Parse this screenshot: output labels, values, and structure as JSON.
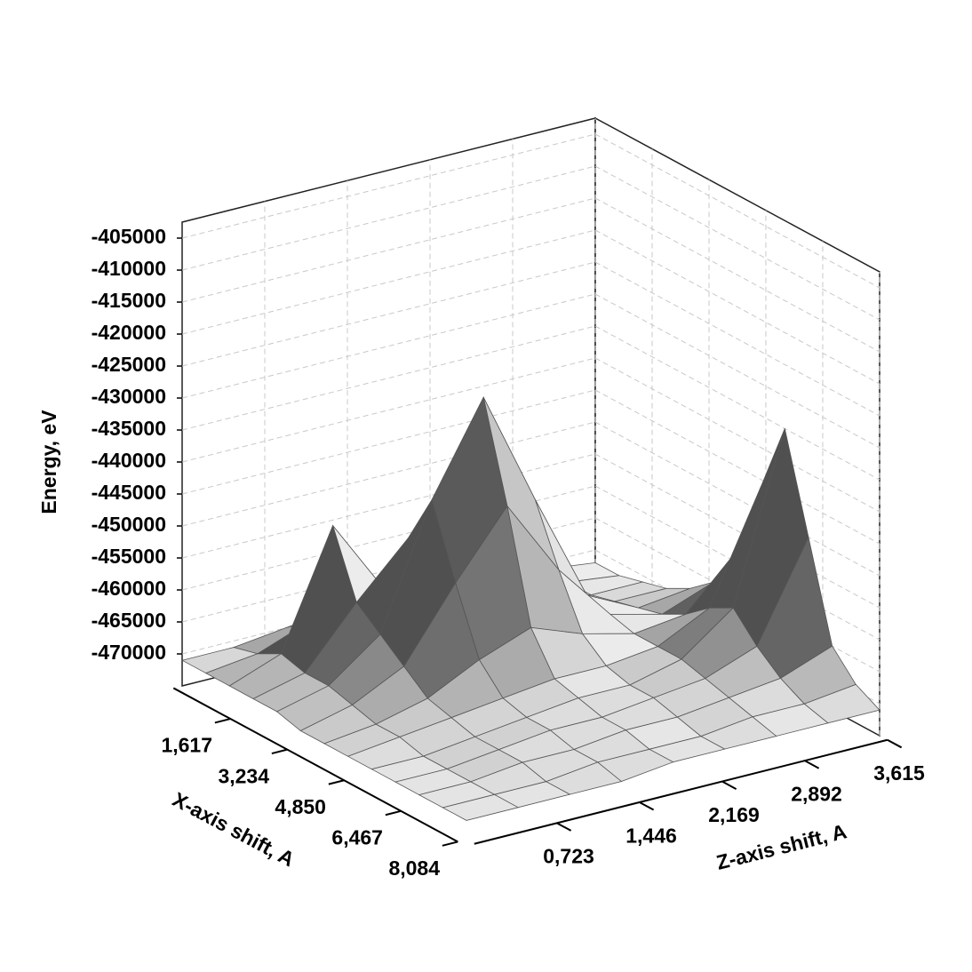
{
  "chart_data": {
    "type": "surface",
    "xlabel": "X-axis shift, A",
    "ylabel": "Z-axis shift, A",
    "zlabel": "Energy, eV",
    "x": [
      0,
      0.674,
      1.347,
      2.021,
      2.695,
      3.368,
      4.042,
      4.716,
      5.389,
      6.063,
      6.737,
      7.41,
      8.084
    ],
    "y": [
      0,
      0.452,
      0.904,
      1.356,
      1.808,
      2.259,
      2.711,
      3.163,
      3.615
    ],
    "values": [
      [
        -471000,
        -471000,
        -470000,
        -469000,
        -469000,
        -470000,
        -471000,
        -471000,
        -472000
      ],
      [
        -471000,
        -470000,
        -467000,
        -465000,
        -466000,
        -468000,
        -470000,
        -471000,
        -472000
      ],
      [
        -471000,
        -468000,
        -450000,
        -462000,
        -462000,
        -466000,
        -469000,
        -471000,
        -471000
      ],
      [
        -471000,
        -469000,
        -460000,
        -452000,
        -445000,
        -458000,
        -467000,
        -470000,
        -470000
      ],
      [
        -471000,
        -469000,
        -463000,
        -444000,
        -430000,
        -448000,
        -465000,
        -469000,
        -468000
      ],
      [
        -472000,
        -470000,
        -466000,
        -455000,
        -445000,
        -457000,
        -466000,
        -468000,
        -465000
      ],
      [
        -472000,
        -471000,
        -469000,
        -465000,
        -462000,
        -465000,
        -467000,
        -466000,
        -458000
      ],
      [
        -472000,
        -471000,
        -470000,
        -469000,
        -468000,
        -468000,
        -467000,
        -463000,
        -446000
      ],
      [
        -472000,
        -472000,
        -471000,
        -470000,
        -469000,
        -469000,
        -467000,
        -461000,
        -435000
      ],
      [
        -472000,
        -472000,
        -471000,
        -470000,
        -470000,
        -469000,
        -468000,
        -465000,
        -450000
      ],
      [
        -472000,
        -472000,
        -471000,
        -471000,
        -470000,
        -470000,
        -469000,
        -468000,
        -465000
      ],
      [
        -472000,
        -472000,
        -472000,
        -471000,
        -471000,
        -471000,
        -470000,
        -470000,
        -469000
      ],
      [
        -472000,
        -472000,
        -472000,
        -472000,
        -471000,
        -471000,
        -471000,
        -471000,
        -471000
      ]
    ],
    "xlim": [
      0,
      8.084
    ],
    "ylim": [
      0,
      3.615
    ],
    "zlim": [
      -475000,
      -402500
    ],
    "xticks": [
      {
        "value": 1.617,
        "label": "1,617"
      },
      {
        "value": 3.234,
        "label": "3,234"
      },
      {
        "value": 4.85,
        "label": "4,850"
      },
      {
        "value": 6.467,
        "label": "6,467"
      },
      {
        "value": 8.084,
        "label": "8,084"
      }
    ],
    "yticks": [
      {
        "value": 0.723,
        "label": "0,723"
      },
      {
        "value": 1.446,
        "label": "1,446"
      },
      {
        "value": 2.169,
        "label": "2,169"
      },
      {
        "value": 2.892,
        "label": "2,892"
      },
      {
        "value": 3.615,
        "label": "3,615"
      }
    ],
    "zticks": [
      -470000,
      -465000,
      -460000,
      -455000,
      -450000,
      -445000,
      -440000,
      -435000,
      -430000,
      -425000,
      -420000,
      -415000,
      -410000,
      -405000
    ],
    "grid": true
  }
}
